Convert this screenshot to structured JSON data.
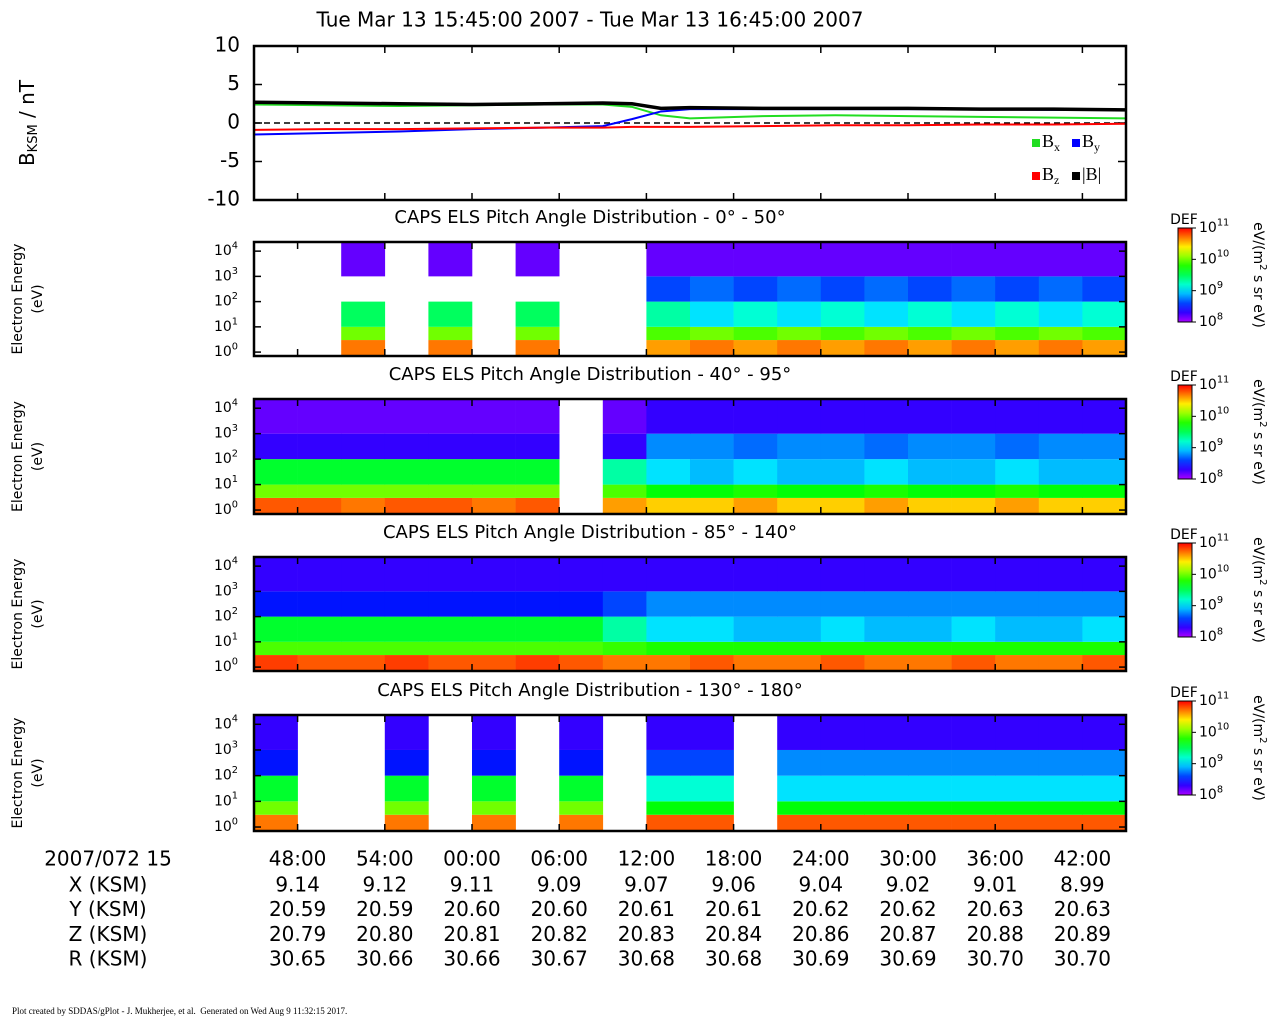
{
  "chart_data": [
    {
      "type": "line",
      "title": "Tue Mar 13 15:45:00 2007 - Tue Mar 13 16:45:00 2007",
      "ylabel": [
        "B",
        "KSM",
        " / nT"
      ],
      "x": [
        "15:45:00",
        "15:50:00",
        "15:55:00",
        "16:00:00",
        "16:05:00",
        "16:09:00",
        "16:11:00",
        "16:13:00",
        "16:15:00",
        "16:20:00",
        "16:25:00",
        "16:30:00",
        "16:35:00",
        "16:40:00",
        "16:45:00"
      ],
      "series": [
        {
          "name": "Bx",
          "color": "#22dd22",
          "values": [
            2.4,
            2.3,
            2.2,
            2.3,
            2.4,
            2.4,
            2.1,
            1.0,
            0.6,
            0.9,
            1.0,
            0.9,
            0.8,
            0.7,
            0.6
          ]
        },
        {
          "name": "By",
          "color": "#0000ff",
          "values": [
            -1.5,
            -1.3,
            -1.1,
            -0.8,
            -0.6,
            -0.4,
            0.5,
            1.5,
            1.8,
            1.8,
            1.8,
            1.8,
            1.8,
            1.7,
            1.7
          ]
        },
        {
          "name": "Bz",
          "color": "#ff0000",
          "values": [
            -0.9,
            -0.8,
            -0.8,
            -0.7,
            -0.6,
            -0.6,
            -0.5,
            -0.5,
            -0.5,
            -0.4,
            -0.3,
            -0.3,
            -0.2,
            -0.2,
            -0.1
          ]
        },
        {
          "name": "|B|",
          "color": "#000000",
          "values": [
            2.7,
            2.6,
            2.5,
            2.4,
            2.5,
            2.6,
            2.5,
            1.9,
            2.0,
            1.9,
            1.9,
            1.9,
            1.8,
            1.8,
            1.7
          ]
        }
      ],
      "xlim": [
        "15:45:00",
        "16:45:00"
      ],
      "xticks": [
        {
          "value": "15:48:00",
          "label": "48:00"
        },
        {
          "value": "15:54:00",
          "label": "54:00"
        },
        {
          "value": "16:00:00",
          "label": "00:00"
        },
        {
          "value": "16:06:00",
          "label": "06:00"
        },
        {
          "value": "16:12:00",
          "label": "12:00"
        },
        {
          "value": "16:18:00",
          "label": "18:00"
        },
        {
          "value": "16:24:00",
          "label": "24:00"
        },
        {
          "value": "16:30:00",
          "label": "30:00"
        },
        {
          "value": "16:36:00",
          "label": "36:00"
        },
        {
          "value": "16:42:00",
          "label": "42:00"
        }
      ],
      "ylim": [
        -10,
        10
      ],
      "yticks": [
        -10,
        -5,
        0,
        5,
        10
      ],
      "reference_line": 0,
      "legend": "lower right"
    },
    {
      "type": "heatmap",
      "title": "CAPS ELS Pitch Angle Distribution - 0° - 50°",
      "ylabel": [
        "Electron Energy",
        "(eV)"
      ],
      "x_bins": [
        "15:45:00",
        "15:48:00",
        "15:51:00",
        "15:54:00",
        "15:57:00",
        "16:00:00",
        "16:03:00",
        "16:06:00",
        "16:09:00",
        "16:12:00",
        "16:15:00",
        "16:18:00",
        "16:21:00",
        "16:24:00",
        "16:27:00",
        "16:30:00",
        "16:33:00",
        "16:36:00",
        "16:39:00",
        "16:42:00",
        "16:45:00"
      ],
      "energy_bins": [
        0.7,
        3,
        10,
        100,
        1000,
        23000
      ],
      "ylim": [
        0.7,
        23000
      ],
      "log_y": true,
      "yticks": [
        {
          "value": 1,
          "label": "10",
          "exponent": "0"
        },
        {
          "value": 10,
          "label": "10",
          "exponent": "1"
        },
        {
          "value": 100,
          "label": "10",
          "exponent": "2"
        },
        {
          "value": 1000,
          "label": "10",
          "exponent": "3"
        },
        {
          "value": 10000,
          "label": "10",
          "exponent": "4"
        }
      ],
      "values": [
        [
          null,
          null,
          50000000000.0,
          null,
          50000000000.0,
          null,
          50000000000.0,
          null,
          null,
          40000000000.0,
          50000000000.0,
          40000000000.0,
          50000000000.0,
          40000000000.0,
          50000000000.0,
          40000000000.0,
          50000000000.0,
          40000000000.0,
          50000000000.0,
          40000000000.0
        ],
        [
          null,
          null,
          10000000000.0,
          null,
          10000000000.0,
          null,
          10000000000.0,
          null,
          null,
          8000000000.0,
          10000000000.0,
          8000000000.0,
          10000000000.0,
          8000000000.0,
          10000000000.0,
          8000000000.0,
          10000000000.0,
          8000000000.0,
          10000000000.0,
          8000000000.0
        ],
        [
          null,
          null,
          3000000000.0,
          null,
          3000000000.0,
          null,
          3000000000.0,
          null,
          null,
          2000000000.0,
          1000000000.0,
          1500000000.0,
          1000000000.0,
          1500000000.0,
          1000000000.0,
          1500000000.0,
          1000000000.0,
          1500000000.0,
          1000000000.0,
          1500000000.0
        ],
        [
          null,
          null,
          null,
          null,
          null,
          null,
          null,
          null,
          null,
          400000000.0,
          500000000.0,
          400000000.0,
          500000000.0,
          400000000.0,
          500000000.0,
          400000000.0,
          500000000.0,
          400000000.0,
          500000000.0,
          400000000.0
        ],
        [
          null,
          null,
          150000000.0,
          null,
          150000000.0,
          null,
          150000000.0,
          null,
          null,
          150000000.0,
          150000000.0,
          150000000.0,
          150000000.0,
          150000000.0,
          150000000.0,
          150000000.0,
          150000000.0,
          150000000.0,
          150000000.0,
          150000000.0
        ]
      ]
    },
    {
      "type": "heatmap",
      "title": "CAPS ELS Pitch Angle Distribution - 40° - 95°",
      "ylabel": [
        "Electron Energy",
        "(eV)"
      ],
      "x_bins": [
        "15:45:00",
        "15:48:00",
        "15:51:00",
        "15:54:00",
        "15:57:00",
        "16:00:00",
        "16:03:00",
        "16:06:00",
        "16:09:00",
        "16:12:00",
        "16:15:00",
        "16:18:00",
        "16:21:00",
        "16:24:00",
        "16:27:00",
        "16:30:00",
        "16:33:00",
        "16:36:00",
        "16:39:00",
        "16:42:00",
        "16:45:00"
      ],
      "energy_bins": [
        0.7,
        3,
        10,
        100,
        1000,
        23000
      ],
      "ylim": [
        0.7,
        23000
      ],
      "log_y": true,
      "yticks": [
        {
          "value": 1,
          "label": "10",
          "exponent": "0"
        },
        {
          "value": 10,
          "label": "10",
          "exponent": "1"
        },
        {
          "value": 100,
          "label": "10",
          "exponent": "2"
        },
        {
          "value": 1000,
          "label": "10",
          "exponent": "3"
        },
        {
          "value": 10000,
          "label": "10",
          "exponent": "4"
        }
      ],
      "values": [
        [
          60000000000.0,
          60000000000.0,
          50000000000.0,
          60000000000.0,
          60000000000.0,
          50000000000.0,
          60000000000.0,
          null,
          40000000000.0,
          30000000000.0,
          30000000000.0,
          40000000000.0,
          30000000000.0,
          30000000000.0,
          40000000000.0,
          30000000000.0,
          30000000000.0,
          40000000000.0,
          30000000000.0,
          30000000000.0
        ],
        [
          10000000000.0,
          10000000000.0,
          10000000000.0,
          10000000000.0,
          10000000000.0,
          10000000000.0,
          10000000000.0,
          null,
          8000000000.0,
          5000000000.0,
          5000000000.0,
          6000000000.0,
          5000000000.0,
          5000000000.0,
          6000000000.0,
          5000000000.0,
          5000000000.0,
          6000000000.0,
          5000000000.0,
          5000000000.0
        ],
        [
          4000000000.0,
          4000000000.0,
          4000000000.0,
          4000000000.0,
          4000000000.0,
          4000000000.0,
          4000000000.0,
          null,
          2000000000.0,
          1000000000.0,
          800000000.0,
          1000000000.0,
          800000000.0,
          800000000.0,
          1000000000.0,
          800000000.0,
          800000000.0,
          1000000000.0,
          800000000.0,
          800000000.0
        ],
        [
          200000000.0,
          200000000.0,
          200000000.0,
          200000000.0,
          200000000.0,
          200000000.0,
          200000000.0,
          null,
          200000000.0,
          600000000.0,
          600000000.0,
          500000000.0,
          600000000.0,
          600000000.0,
          500000000.0,
          600000000.0,
          600000000.0,
          500000000.0,
          600000000.0,
          600000000.0
        ],
        [
          150000000.0,
          150000000.0,
          150000000.0,
          150000000.0,
          150000000.0,
          150000000.0,
          150000000.0,
          null,
          150000000.0,
          200000000.0,
          200000000.0,
          200000000.0,
          200000000.0,
          200000000.0,
          200000000.0,
          200000000.0,
          200000000.0,
          200000000.0,
          200000000.0,
          200000000.0
        ]
      ]
    },
    {
      "type": "heatmap",
      "title": "CAPS ELS Pitch Angle Distribution - 85° - 140°",
      "ylabel": [
        "Electron Energy",
        "(eV)"
      ],
      "x_bins": [
        "15:45:00",
        "15:48:00",
        "15:51:00",
        "15:54:00",
        "15:57:00",
        "16:00:00",
        "16:03:00",
        "16:06:00",
        "16:09:00",
        "16:12:00",
        "16:15:00",
        "16:18:00",
        "16:21:00",
        "16:24:00",
        "16:27:00",
        "16:30:00",
        "16:33:00",
        "16:36:00",
        "16:39:00",
        "16:42:00",
        "16:45:00"
      ],
      "energy_bins": [
        0.7,
        3,
        10,
        100,
        1000,
        23000
      ],
      "ylim": [
        0.7,
        23000
      ],
      "log_y": true,
      "yticks": [
        {
          "value": 1,
          "label": "10",
          "exponent": "0"
        },
        {
          "value": 10,
          "label": "10",
          "exponent": "1"
        },
        {
          "value": 100,
          "label": "10",
          "exponent": "2"
        },
        {
          "value": 1000,
          "label": "10",
          "exponent": "3"
        },
        {
          "value": 10000,
          "label": "10",
          "exponent": "4"
        }
      ],
      "values": [
        [
          70000000000.0,
          60000000000.0,
          60000000000.0,
          70000000000.0,
          60000000000.0,
          60000000000.0,
          70000000000.0,
          60000000000.0,
          50000000000.0,
          50000000000.0,
          60000000000.0,
          50000000000.0,
          50000000000.0,
          60000000000.0,
          50000000000.0,
          50000000000.0,
          60000000000.0,
          50000000000.0,
          50000000000.0,
          60000000000.0
        ],
        [
          8000000000.0,
          8000000000.0,
          8000000000.0,
          8000000000.0,
          8000000000.0,
          8000000000.0,
          8000000000.0,
          8000000000.0,
          7000000000.0,
          6000000000.0,
          6000000000.0,
          6000000000.0,
          6000000000.0,
          6000000000.0,
          6000000000.0,
          6000000000.0,
          6000000000.0,
          6000000000.0,
          6000000000.0,
          6000000000.0
        ],
        [
          4000000000.0,
          4000000000.0,
          4000000000.0,
          4000000000.0,
          4000000000.0,
          4000000000.0,
          4000000000.0,
          4000000000.0,
          2000000000.0,
          1000000000.0,
          1000000000.0,
          800000000.0,
          800000000.0,
          1000000000.0,
          800000000.0,
          800000000.0,
          1000000000.0,
          800000000.0,
          800000000.0,
          1000000000.0
        ],
        [
          300000000.0,
          300000000.0,
          300000000.0,
          300000000.0,
          300000000.0,
          300000000.0,
          300000000.0,
          300000000.0,
          400000000.0,
          600000000.0,
          600000000.0,
          600000000.0,
          600000000.0,
          600000000.0,
          600000000.0,
          600000000.0,
          600000000.0,
          600000000.0,
          600000000.0,
          600000000.0
        ],
        [
          200000000.0,
          200000000.0,
          200000000.0,
          200000000.0,
          200000000.0,
          200000000.0,
          200000000.0,
          200000000.0,
          200000000.0,
          200000000.0,
          200000000.0,
          200000000.0,
          200000000.0,
          200000000.0,
          200000000.0,
          200000000.0,
          200000000.0,
          200000000.0,
          200000000.0,
          200000000.0
        ]
      ]
    },
    {
      "type": "heatmap",
      "title": "CAPS ELS Pitch Angle Distribution - 130° - 180°",
      "ylabel": [
        "Electron Energy",
        "(eV)"
      ],
      "x_bins": [
        "15:45:00",
        "15:48:00",
        "15:51:00",
        "15:54:00",
        "15:57:00",
        "16:00:00",
        "16:03:00",
        "16:06:00",
        "16:09:00",
        "16:12:00",
        "16:15:00",
        "16:18:00",
        "16:21:00",
        "16:24:00",
        "16:27:00",
        "16:30:00",
        "16:33:00",
        "16:36:00",
        "16:39:00",
        "16:42:00",
        "16:45:00"
      ],
      "energy_bins": [
        0.7,
        3,
        10,
        100,
        1000,
        23000
      ],
      "ylim": [
        0.7,
        23000
      ],
      "log_y": true,
      "yticks": [
        {
          "value": 1,
          "label": "10",
          "exponent": "0"
        },
        {
          "value": 10,
          "label": "10",
          "exponent": "1"
        },
        {
          "value": 100,
          "label": "10",
          "exponent": "2"
        },
        {
          "value": 1000,
          "label": "10",
          "exponent": "3"
        },
        {
          "value": 10000,
          "label": "10",
          "exponent": "4"
        }
      ],
      "values": [
        [
          50000000000.0,
          null,
          null,
          50000000000.0,
          null,
          50000000000.0,
          null,
          50000000000.0,
          null,
          60000000000.0,
          60000000000.0,
          null,
          60000000000.0,
          60000000000.0,
          60000000000.0,
          60000000000.0,
          60000000000.0,
          60000000000.0,
          60000000000.0,
          60000000000.0
        ],
        [
          10000000000.0,
          null,
          null,
          10000000000.0,
          null,
          10000000000.0,
          null,
          10000000000.0,
          null,
          5000000000.0,
          5000000000.0,
          null,
          5000000000.0,
          5000000000.0,
          5000000000.0,
          5000000000.0,
          5000000000.0,
          5000000000.0,
          5000000000.0,
          5000000000.0
        ],
        [
          4000000000.0,
          null,
          null,
          4000000000.0,
          null,
          4000000000.0,
          null,
          4000000000.0,
          null,
          1500000000.0,
          1500000000.0,
          null,
          1000000000.0,
          1000000000.0,
          1000000000.0,
          1000000000.0,
          1000000000.0,
          1000000000.0,
          1000000000.0,
          1000000000.0
        ],
        [
          300000000.0,
          null,
          null,
          300000000.0,
          null,
          300000000.0,
          null,
          300000000.0,
          null,
          400000000.0,
          400000000.0,
          null,
          600000000.0,
          600000000.0,
          600000000.0,
          600000000.0,
          600000000.0,
          600000000.0,
          600000000.0,
          600000000.0
        ],
        [
          200000000.0,
          null,
          null,
          200000000.0,
          null,
          200000000.0,
          null,
          200000000.0,
          null,
          200000000.0,
          200000000.0,
          null,
          200000000.0,
          200000000.0,
          200000000.0,
          200000000.0,
          200000000.0,
          200000000.0,
          200000000.0,
          200000000.0
        ]
      ]
    }
  ],
  "colorbar": {
    "label": "DEF",
    "unit": [
      "eV/(m",
      "2",
      " s sr eV)"
    ],
    "lim": [
      100000000.0,
      100000000000.0
    ],
    "ticks": [
      {
        "value": 100000000.0,
        "label": "10",
        "exponent": "8"
      },
      {
        "value": 1000000000.0,
        "label": "10",
        "exponent": "9"
      },
      {
        "value": 10000000000.0,
        "label": "10",
        "exponent": "10"
      },
      {
        "value": 100000000000.0,
        "label": "10",
        "exponent": "11"
      }
    ]
  },
  "ephemeris": {
    "label": "2007/072 15",
    "rows": [
      {
        "name": "X (KSM)",
        "values": [
          "9.14",
          "9.12",
          "9.11",
          "9.09",
          "9.07",
          "9.06",
          "9.04",
          "9.02",
          "9.01",
          "8.99"
        ]
      },
      {
        "name": "Y (KSM)",
        "values": [
          "20.59",
          "20.59",
          "20.60",
          "20.60",
          "20.61",
          "20.61",
          "20.62",
          "20.62",
          "20.63",
          "20.63"
        ]
      },
      {
        "name": "Z (KSM)",
        "values": [
          "20.79",
          "20.80",
          "20.81",
          "20.82",
          "20.83",
          "20.84",
          "20.86",
          "20.87",
          "20.88",
          "20.89"
        ]
      },
      {
        "name": "R (KSM)",
        "values": [
          "30.65",
          "30.66",
          "30.66",
          "30.67",
          "30.68",
          "30.68",
          "30.69",
          "30.69",
          "30.70",
          "30.70"
        ]
      }
    ]
  },
  "footer": "Plot created by SDDAS/gPlot - J. Mukherjee, et al.  Generated on Wed Aug 9 11:32:15 2017."
}
